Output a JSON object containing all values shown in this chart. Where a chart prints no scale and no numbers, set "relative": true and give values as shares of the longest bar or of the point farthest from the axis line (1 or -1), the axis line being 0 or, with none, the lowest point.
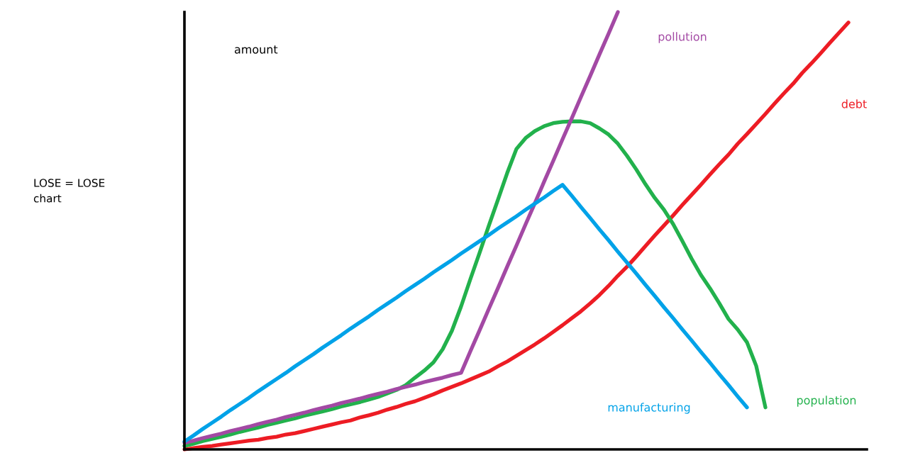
{
  "chart_data": {
    "type": "line",
    "title": "LOSE = LOSE\nchart",
    "ylabel": "amount",
    "relative": true,
    "categories": [
      null,
      null,
      null,
      null,
      null,
      null,
      null,
      null,
      null,
      null,
      null,
      null,
      null,
      null,
      null,
      null,
      null,
      null,
      null,
      null,
      null,
      null,
      null,
      null,
      null,
      null,
      null,
      null,
      null,
      null,
      null,
      null,
      null,
      null,
      null,
      null,
      null,
      null,
      null,
      null,
      null,
      null,
      null,
      null,
      null,
      null,
      null,
      null,
      null,
      null,
      null,
      null,
      null,
      null,
      null,
      null,
      null,
      null,
      null,
      null,
      null,
      null,
      null,
      null,
      null,
      null,
      null,
      null,
      null,
      null,
      null,
      null,
      null
    ],
    "series": [
      {
        "name": "debt",
        "color": "#ed1c24",
        "values": [
          0,
          0.003,
          0.006,
          0.008,
          0.011,
          0.014,
          0.017,
          0.02,
          0.022,
          0.026,
          0.029,
          0.034,
          0.037,
          0.042,
          0.047,
          0.052,
          0.057,
          0.062,
          0.066,
          0.073,
          0.078,
          0.084,
          0.091,
          0.097,
          0.104,
          0.11,
          0.118,
          0.126,
          0.135,
          0.143,
          0.151,
          0.16,
          0.169,
          0.178,
          0.19,
          0.201,
          0.214,
          0.227,
          0.24,
          0.254,
          0.269,
          0.284,
          0.3,
          0.316,
          0.334,
          0.353,
          0.374,
          0.397,
          0.418,
          0.441,
          0.465,
          0.489,
          0.512,
          0.535,
          0.559,
          0.582,
          0.605,
          0.629,
          0.652,
          0.674,
          0.699,
          0.721,
          0.744,
          0.767,
          0.791,
          0.814,
          0.836,
          0.861,
          0.883,
          0.906,
          0.93,
          0.953,
          0.976
        ]
      },
      {
        "name": "population",
        "color": "#22b14c",
        "values": [
          0.008,
          0.013,
          0.019,
          0.024,
          0.029,
          0.034,
          0.04,
          0.045,
          0.05,
          0.056,
          0.061,
          0.066,
          0.071,
          0.077,
          0.082,
          0.087,
          0.092,
          0.098,
          0.103,
          0.108,
          0.114,
          0.12,
          0.128,
          0.136,
          0.147,
          0.164,
          0.18,
          0.199,
          0.229,
          0.271,
          0.327,
          0.389,
          0.449,
          0.511,
          0.571,
          0.632,
          0.687,
          0.712,
          0.728,
          0.739,
          0.746,
          0.749,
          0.75,
          0.75,
          0.746,
          0.734,
          0.72,
          0.699,
          0.671,
          0.64,
          0.606,
          0.575,
          0.548,
          0.515,
          0.476,
          0.436,
          0.399,
          0.368,
          0.334,
          0.298,
          0.274,
          0.245,
          0.191,
          0.096,
          null,
          null,
          null,
          null,
          null,
          null,
          null,
          null,
          null
        ]
      },
      {
        "name": "pollution",
        "color": "#a349a4",
        "values": [
          0.015,
          0.02,
          0.026,
          0.031,
          0.036,
          0.042,
          0.047,
          0.052,
          0.058,
          0.063,
          0.068,
          0.074,
          0.079,
          0.084,
          0.09,
          0.095,
          0.1,
          0.106,
          0.111,
          0.116,
          0.122,
          0.127,
          0.132,
          0.138,
          0.143,
          0.148,
          0.154,
          0.159,
          0.164,
          0.17,
          0.175,
          0.224,
          0.272,
          0.321,
          0.369,
          0.418,
          0.466,
          0.515,
          0.563,
          0.612,
          0.66,
          0.709,
          0.757,
          0.806,
          0.854,
          0.903,
          0.951,
          1,
          null,
          null,
          null,
          null,
          null,
          null,
          null,
          null,
          null,
          null,
          null,
          null,
          null,
          null,
          null,
          null,
          null,
          null,
          null,
          null,
          null,
          null,
          null,
          null,
          null
        ]
      },
      {
        "name": "manufacturing",
        "color": "#00a2e8",
        "values": [
          0.018,
          0.032,
          0.047,
          0.061,
          0.075,
          0.09,
          0.104,
          0.118,
          0.133,
          0.147,
          0.161,
          0.175,
          0.19,
          0.204,
          0.218,
          0.233,
          0.247,
          0.261,
          0.276,
          0.29,
          0.304,
          0.319,
          0.333,
          0.347,
          0.362,
          0.376,
          0.39,
          0.405,
          0.419,
          0.433,
          0.448,
          0.462,
          0.476,
          0.49,
          0.505,
          0.519,
          0.533,
          0.548,
          0.562,
          0.576,
          0.591,
          0.605,
          0.58,
          0.554,
          0.529,
          0.503,
          0.478,
          0.452,
          0.427,
          0.402,
          0.376,
          0.351,
          0.325,
          0.3,
          0.274,
          0.249,
          0.223,
          0.198,
          0.172,
          0.147,
          0.121,
          0.096,
          null,
          null,
          null,
          null,
          null,
          null,
          null,
          null,
          null,
          null,
          null
        ]
      }
    ]
  }
}
